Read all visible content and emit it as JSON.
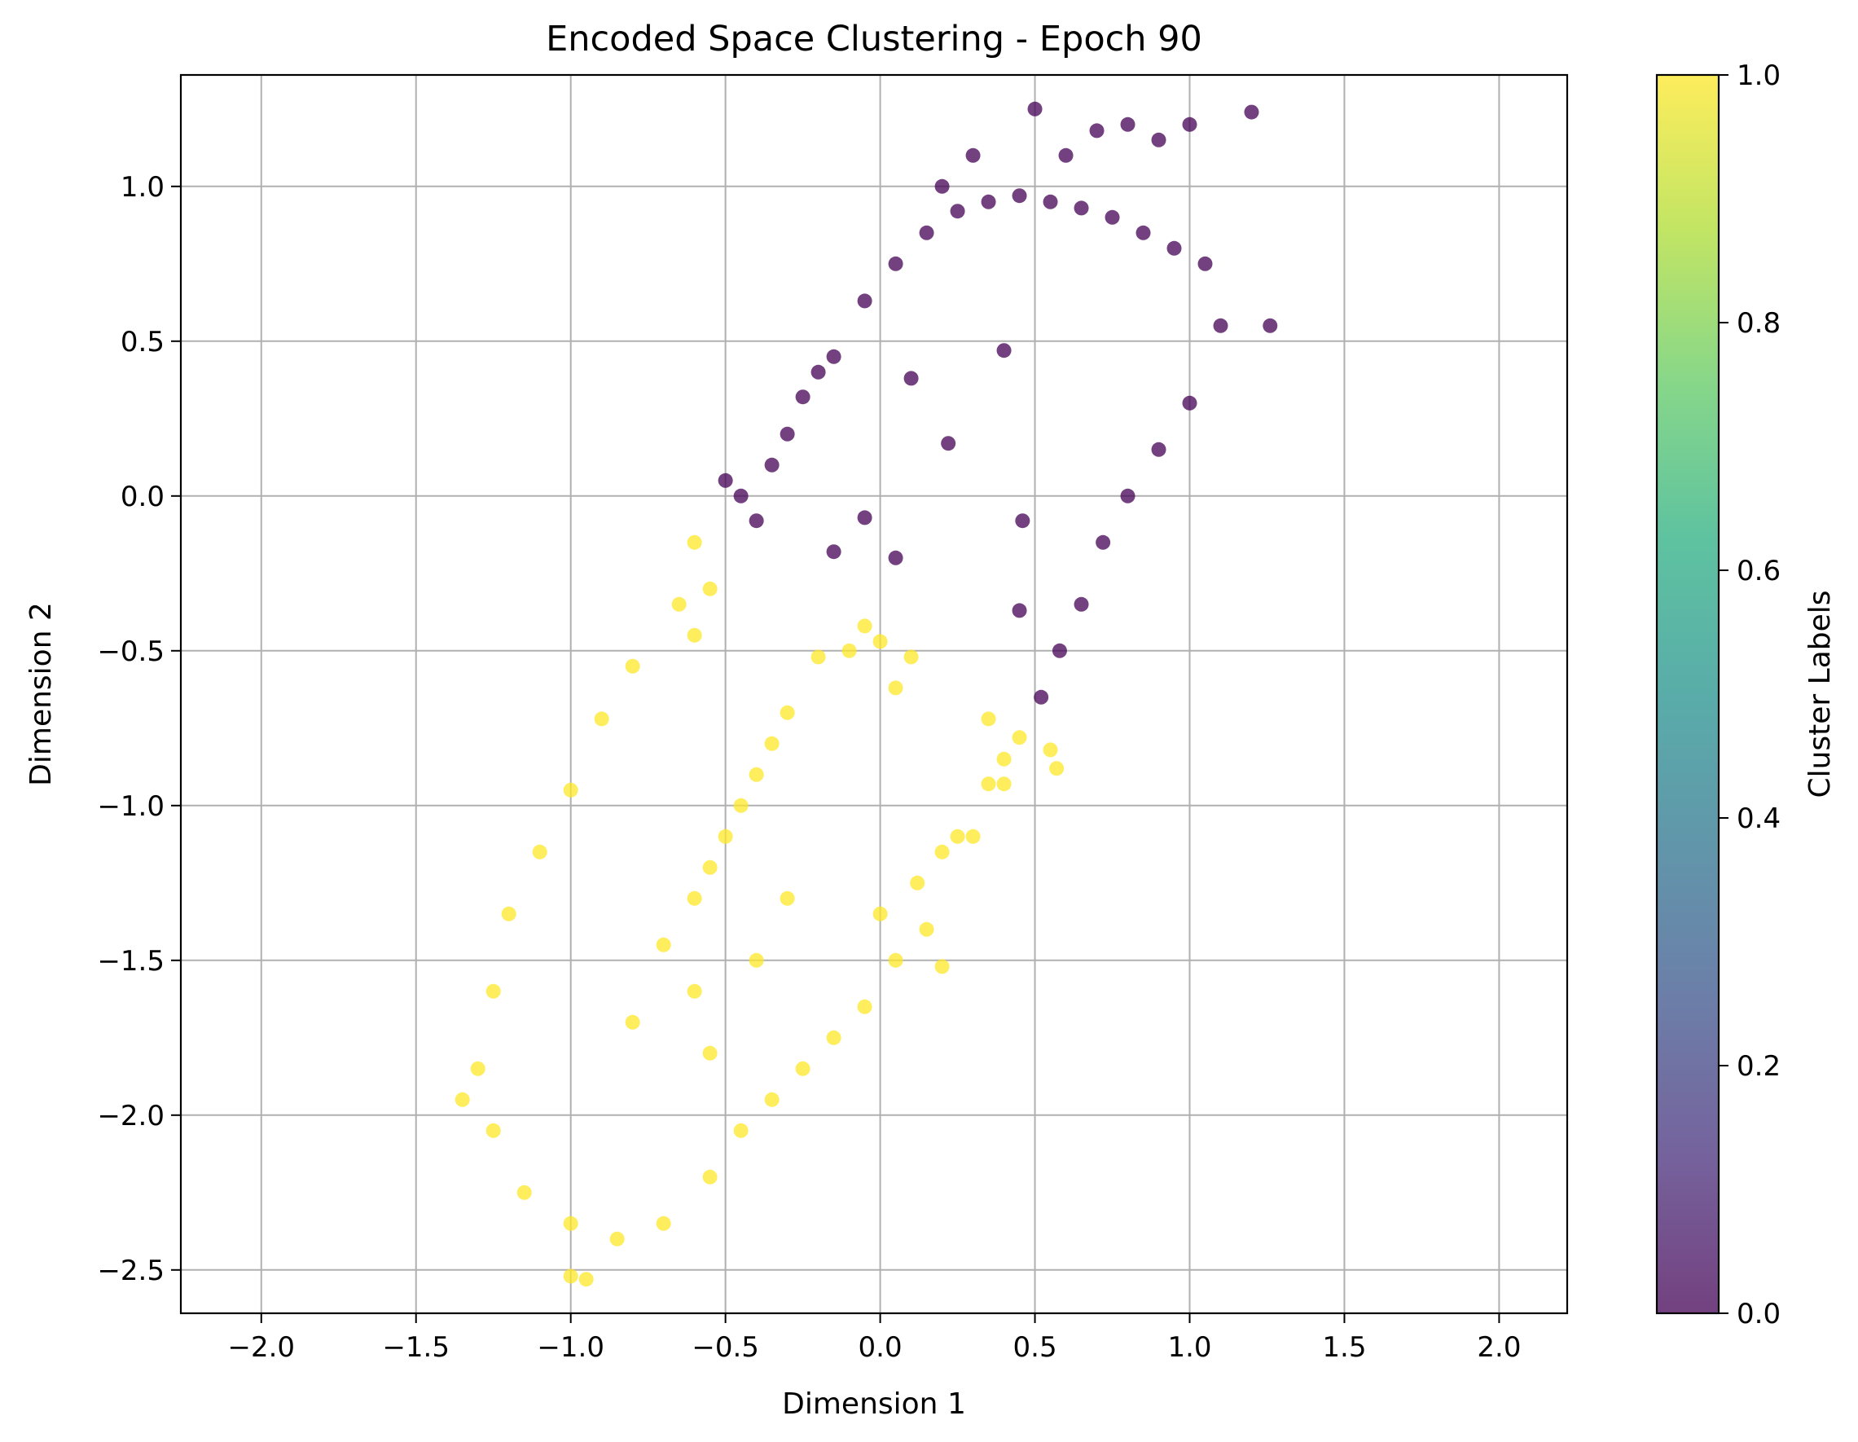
{
  "chart_data": {
    "type": "scatter",
    "title": "Encoded Space Clustering - Epoch 90",
    "xlabel": "Dimension 1",
    "ylabel": "Dimension 2",
    "xlim": [
      -2.26,
      2.22
    ],
    "ylim": [
      -2.64,
      1.36
    ],
    "xticks": [
      -2.0,
      -1.5,
      -1.0,
      -0.5,
      0.0,
      0.5,
      1.0,
      1.5,
      2.0
    ],
    "xtick_labels": [
      "−2.0",
      "−1.5",
      "−1.0",
      "−0.5",
      "0.0",
      "0.5",
      "1.0",
      "1.5",
      "2.0"
    ],
    "yticks": [
      -2.5,
      -2.0,
      -1.5,
      -1.0,
      -0.5,
      0.0,
      0.5,
      1.0
    ],
    "ytick_labels": [
      "−2.5",
      "−2.0",
      "−1.5",
      "−1.0",
      "−0.5",
      "0.0",
      "0.5",
      "1.0"
    ],
    "grid": true,
    "colorbar": {
      "label": "Cluster Labels",
      "range": [
        0.0,
        1.0
      ],
      "ticks": [
        0.0,
        0.2,
        0.4,
        0.6,
        0.8,
        1.0
      ],
      "tick_labels": [
        "0.0",
        "0.2",
        "0.4",
        "0.6",
        "0.8",
        "1.0"
      ],
      "colormap": "viridis"
    },
    "series": [
      {
        "label_value": 0,
        "color": "#440154",
        "points": [
          [
            -0.5,
            0.05
          ],
          [
            -0.45,
            0.0
          ],
          [
            -0.4,
            -0.08
          ],
          [
            -0.35,
            0.1
          ],
          [
            -0.3,
            0.2
          ],
          [
            -0.25,
            0.32
          ],
          [
            -0.2,
            0.4
          ],
          [
            -0.15,
            0.45
          ],
          [
            -0.05,
            0.63
          ],
          [
            0.05,
            0.75
          ],
          [
            0.15,
            0.85
          ],
          [
            0.25,
            0.92
          ],
          [
            0.35,
            0.95
          ],
          [
            0.45,
            0.97
          ],
          [
            0.55,
            0.95
          ],
          [
            0.65,
            0.93
          ],
          [
            0.75,
            0.9
          ],
          [
            0.85,
            0.85
          ],
          [
            0.95,
            0.8
          ],
          [
            1.05,
            0.75
          ],
          [
            1.1,
            0.55
          ],
          [
            1.0,
            0.3
          ],
          [
            0.9,
            0.15
          ],
          [
            0.8,
            0.0
          ],
          [
            0.72,
            -0.15
          ],
          [
            0.65,
            -0.35
          ],
          [
            0.58,
            -0.5
          ],
          [
            0.52,
            -0.65
          ],
          [
            0.45,
            -0.37
          ],
          [
            0.2,
            1.0
          ],
          [
            0.3,
            1.1
          ],
          [
            0.5,
            1.25
          ],
          [
            0.6,
            1.1
          ],
          [
            0.7,
            1.18
          ],
          [
            0.8,
            1.2
          ],
          [
            0.9,
            1.15
          ],
          [
            1.0,
            1.2
          ],
          [
            1.2,
            1.24
          ],
          [
            1.26,
            0.55
          ],
          [
            0.1,
            0.38
          ],
          [
            0.22,
            0.17
          ],
          [
            0.4,
            0.47
          ],
          [
            0.46,
            -0.08
          ],
          [
            -0.15,
            -0.18
          ],
          [
            -0.05,
            -0.07
          ],
          [
            0.05,
            -0.2
          ]
        ]
      },
      {
        "label_value": 1,
        "color": "#fde725",
        "points": [
          [
            -0.6,
            -0.15
          ],
          [
            -0.55,
            -0.3
          ],
          [
            -0.6,
            -0.45
          ],
          [
            -0.65,
            -0.35
          ],
          [
            -0.8,
            -0.55
          ],
          [
            -0.9,
            -0.72
          ],
          [
            -1.0,
            -0.95
          ],
          [
            -1.1,
            -1.15
          ],
          [
            -1.2,
            -1.35
          ],
          [
            -1.25,
            -1.6
          ],
          [
            -1.3,
            -1.85
          ],
          [
            -1.25,
            -2.05
          ],
          [
            -1.15,
            -2.25
          ],
          [
            -1.0,
            -2.35
          ],
          [
            -0.85,
            -2.4
          ],
          [
            -0.7,
            -2.35
          ],
          [
            -0.55,
            -2.2
          ],
          [
            -0.45,
            -2.05
          ],
          [
            -0.35,
            -1.95
          ],
          [
            -0.25,
            -1.85
          ],
          [
            -0.15,
            -1.75
          ],
          [
            -0.05,
            -1.65
          ],
          [
            0.05,
            -1.5
          ],
          [
            0.0,
            -1.35
          ],
          [
            -0.6,
            -1.3
          ],
          [
            -0.55,
            -1.2
          ],
          [
            -0.5,
            -1.1
          ],
          [
            -0.45,
            -1.0
          ],
          [
            -0.4,
            -0.9
          ],
          [
            -0.35,
            -0.8
          ],
          [
            -0.7,
            -1.45
          ],
          [
            -0.6,
            -1.6
          ],
          [
            -0.8,
            -1.7
          ],
          [
            -0.55,
            -1.8
          ],
          [
            -1.0,
            -2.52
          ],
          [
            -0.95,
            -2.53
          ],
          [
            -1.35,
            -1.95
          ],
          [
            0.35,
            -0.72
          ],
          [
            0.4,
            -0.85
          ],
          [
            0.45,
            -0.78
          ],
          [
            0.55,
            -0.82
          ],
          [
            0.57,
            -0.88
          ],
          [
            0.35,
            -0.93
          ],
          [
            0.4,
            -0.93
          ],
          [
            0.2,
            -1.15
          ],
          [
            0.25,
            -1.1
          ],
          [
            0.12,
            -1.25
          ],
          [
            0.15,
            -1.4
          ],
          [
            0.2,
            -1.52
          ],
          [
            -0.05,
            -0.42
          ],
          [
            0.0,
            -0.47
          ],
          [
            -0.1,
            -0.5
          ],
          [
            -0.2,
            -0.52
          ],
          [
            -0.3,
            -0.7
          ],
          [
            0.05,
            -0.62
          ],
          [
            0.1,
            -0.52
          ],
          [
            0.3,
            -1.1
          ],
          [
            -0.4,
            -1.5
          ],
          [
            -0.3,
            -1.3
          ]
        ]
      }
    ]
  }
}
